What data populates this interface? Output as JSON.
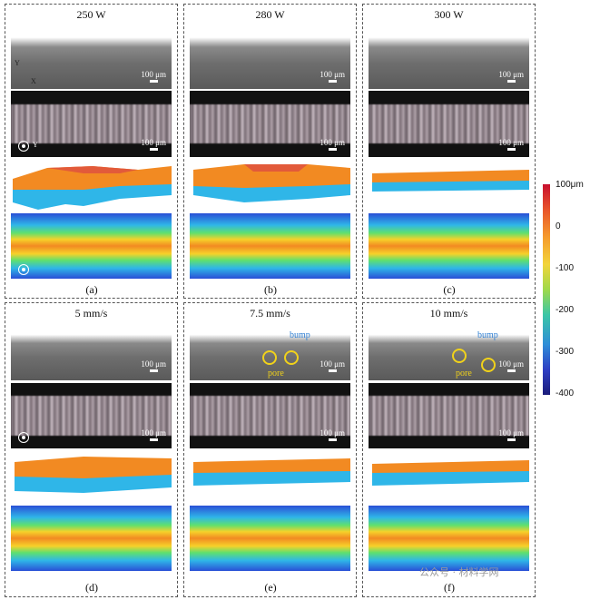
{
  "panels": [
    {
      "title": "250 W",
      "label": "(a)",
      "scale": "100 μm"
    },
    {
      "title": "280 W",
      "label": "(b)",
      "scale": "100 μm"
    },
    {
      "title": "300 W",
      "label": "(c)",
      "scale": "100 μm"
    },
    {
      "title": "5 mm/s",
      "label": "(d)",
      "scale": "100 μm"
    },
    {
      "title": "7.5 mm/s",
      "label": "(e)",
      "scale": "100 μm"
    },
    {
      "title": "10 mm/s",
      "label": "(f)",
      "scale": "100 μm"
    }
  ],
  "axes": {
    "y": "Y",
    "x": "X"
  },
  "annotations": {
    "bump": "bump",
    "pore": "pore"
  },
  "colorbar": {
    "ticks": [
      "100μm",
      "0",
      "-100",
      "-200",
      "-300",
      "-400"
    ],
    "colors": [
      "#c8102e",
      "#f59a2c",
      "#f2d43a",
      "#3bc6a6",
      "#2f8ed8",
      "#1b1c7a"
    ]
  },
  "watermark": "公众号 · 材料学网"
}
